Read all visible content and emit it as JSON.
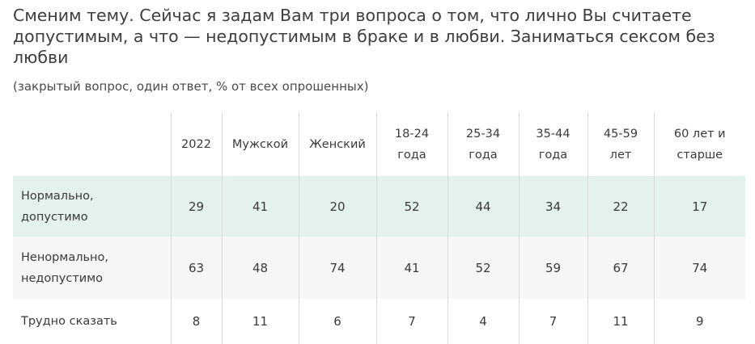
{
  "title": "Сменим тему. Сейчас я задам Вам три вопроса о том, что лично Вы считаете допустимым, а что — недопустимым в браке и в любви. Заниматься сексом без любви",
  "subtitle": "(закрытый вопрос, один ответ, % от всех опрошенных)",
  "chart_data": {
    "type": "table",
    "columns": [
      {
        "line1": "2022",
        "line2": ""
      },
      {
        "line1": "Мужской",
        "line2": ""
      },
      {
        "line1": "Женский",
        "line2": ""
      },
      {
        "line1": "18-24",
        "line2": "года"
      },
      {
        "line1": "25-34",
        "line2": "года"
      },
      {
        "line1": "35-44",
        "line2": "года"
      },
      {
        "line1": "45-59",
        "line2": "лет"
      },
      {
        "line1": "60 лет и",
        "line2": "старше"
      }
    ],
    "rows": [
      {
        "label_line1": "Нормально,",
        "label_line2": "допустимо",
        "values": [
          29,
          41,
          20,
          52,
          44,
          34,
          22,
          17
        ]
      },
      {
        "label_line1": "Ненормально,",
        "label_line2": "недопустимо",
        "values": [
          63,
          48,
          74,
          41,
          52,
          59,
          67,
          74
        ]
      },
      {
        "label_line1": "Трудно сказать",
        "label_line2": "",
        "values": [
          8,
          11,
          6,
          7,
          4,
          7,
          11,
          9
        ]
      }
    ]
  },
  "colors": {
    "highlight_row": "#e3f2ec",
    "alt_row": "#f6f6f6",
    "divider": "#d9d9d9",
    "text": "#3a3a3a"
  }
}
